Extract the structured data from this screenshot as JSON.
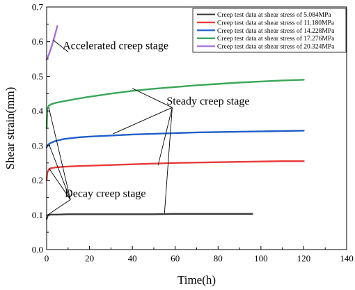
{
  "chart_data": {
    "type": "line",
    "xlabel": "Time(h)",
    "ylabel": "Shear strain(mm)",
    "xlim": [
      0,
      140
    ],
    "ylim": [
      0,
      0.7
    ],
    "xticks": [
      0,
      20,
      40,
      60,
      80,
      100,
      120,
      140
    ],
    "yticks": [
      0.0,
      0.1,
      0.2,
      0.3,
      0.4,
      0.5,
      0.6,
      0.7
    ],
    "grid": false,
    "legend_position": "top-right",
    "series": [
      {
        "name": "Creep test data at shear stress of 5.084MPa",
        "color": "#3a3a3a",
        "x": [
          0,
          0.5,
          1,
          2,
          5,
          10,
          15,
          20,
          30,
          40,
          50,
          60,
          70,
          80,
          90,
          96
        ],
        "y": [
          0.088,
          0.098,
          0.1,
          0.101,
          0.101,
          0.102,
          0.102,
          0.102,
          0.102,
          0.102,
          0.102,
          0.103,
          0.103,
          0.103,
          0.103,
          0.103
        ]
      },
      {
        "name": "Creep test data at shear stress of 11.180MPa",
        "color": "#e83a3a",
        "x": [
          0,
          0.3,
          1,
          2,
          4,
          8,
          15,
          20,
          30,
          40,
          50,
          60,
          70,
          80,
          90,
          100,
          110,
          120
        ],
        "y": [
          0.2,
          0.222,
          0.23,
          0.235,
          0.237,
          0.239,
          0.241,
          0.242,
          0.244,
          0.246,
          0.248,
          0.25,
          0.251,
          0.252,
          0.253,
          0.254,
          0.255,
          0.255
        ]
      },
      {
        "name": "Creep test data at shear stress of 14.228MPa",
        "color": "#1f5fc8",
        "x": [
          0,
          0.5,
          1,
          2,
          4,
          8,
          15,
          20,
          30,
          40,
          50,
          60,
          70,
          80,
          90,
          100,
          110,
          120
        ],
        "y": [
          0.295,
          0.301,
          0.304,
          0.308,
          0.313,
          0.319,
          0.324,
          0.326,
          0.329,
          0.332,
          0.334,
          0.336,
          0.338,
          0.339,
          0.34,
          0.341,
          0.342,
          0.343
        ]
      },
      {
        "name": "Creep test data at shear stress of 17.276MPa",
        "color": "#3aa65a",
        "x": [
          0,
          0.3,
          1,
          2,
          4,
          8,
          15,
          20,
          30,
          40,
          50,
          60,
          70,
          80,
          90,
          100,
          110,
          120
        ],
        "y": [
          0.35,
          0.405,
          0.415,
          0.419,
          0.423,
          0.428,
          0.436,
          0.441,
          0.45,
          0.458,
          0.464,
          0.469,
          0.474,
          0.478,
          0.482,
          0.485,
          0.488,
          0.49
        ]
      },
      {
        "name": "Creep test data at shear stress of 20.324MPa",
        "color": "#a86fd6",
        "x": [
          0,
          1,
          2,
          3,
          4,
          5
        ],
        "y": [
          0.548,
          0.562,
          0.58,
          0.6,
          0.622,
          0.645
        ]
      }
    ],
    "annotations": [
      {
        "text": "Accelerated creep stage",
        "text_at": [
          7.5,
          0.578
        ],
        "pointers": [
          [
            3,
            0.605
          ]
        ]
      },
      {
        "text": "Steady creep stage",
        "text_at": [
          56,
          0.418
        ],
        "pointers": [
          [
            40,
            0.465
          ],
          [
            31,
            0.334
          ],
          [
            52,
            0.243
          ],
          [
            55,
            0.105
          ]
        ]
      },
      {
        "text": "Decay creep stage",
        "text_at": [
          8.5,
          0.152
        ],
        "pointers": [
          [
            1,
            0.41
          ],
          [
            1,
            0.305
          ],
          [
            1,
            0.235
          ],
          [
            0.5,
            0.1
          ]
        ]
      }
    ]
  }
}
